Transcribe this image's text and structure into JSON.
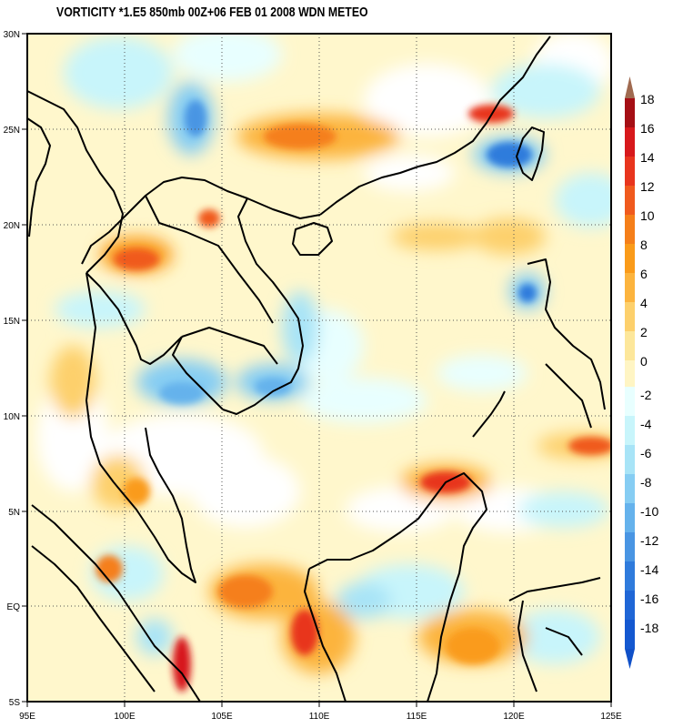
{
  "map": {
    "title": "VORTICITY *1.E5 850mb 00Z+06 FEB 01 2008 WDN METEO",
    "lat_labels": [
      "30N",
      "25N",
      "20N",
      "15N",
      "10N",
      "5N",
      "EQ",
      "5S"
    ],
    "lon_labels": [
      "95E",
      "100E",
      "105E",
      "110E",
      "115E",
      "120E",
      "125E"
    ],
    "extent": {
      "lon_min": 95,
      "lon_max": 125,
      "lat_min": -5,
      "lat_max": 30
    },
    "gridlines": "dotted"
  },
  "colorbar": {
    "positive": [
      {
        "label": "18",
        "color": "#a50f15"
      },
      {
        "label": "16",
        "color": "#d7191c"
      },
      {
        "label": "14",
        "color": "#e8351e"
      },
      {
        "label": "12",
        "color": "#f05a1e"
      },
      {
        "label": "10",
        "color": "#f57f1a"
      },
      {
        "label": "8",
        "color": "#fa9b1a"
      },
      {
        "label": "6",
        "color": "#fcb43e"
      },
      {
        "label": "4",
        "color": "#fdd06c"
      },
      {
        "label": "2",
        "color": "#fde79b"
      },
      {
        "label": "0",
        "color": "#fff5c4"
      }
    ],
    "negative": [
      {
        "label": "-2",
        "color": "#e8ffff"
      },
      {
        "label": "-4",
        "color": "#c8f5fb"
      },
      {
        "label": "-6",
        "color": "#a8e4f7"
      },
      {
        "label": "-8",
        "color": "#86cdf3"
      },
      {
        "label": "-10",
        "color": "#65b2ec"
      },
      {
        "label": "-12",
        "color": "#4995e3"
      },
      {
        "label": "-14",
        "color": "#2f7bdc"
      },
      {
        "label": "-16",
        "color": "#1f66d6"
      },
      {
        "label": "-18",
        "color": "#1458d0"
      }
    ],
    "top_arrow_color": "#a06a50",
    "bottom_arrow_color": "#1050c8"
  }
}
